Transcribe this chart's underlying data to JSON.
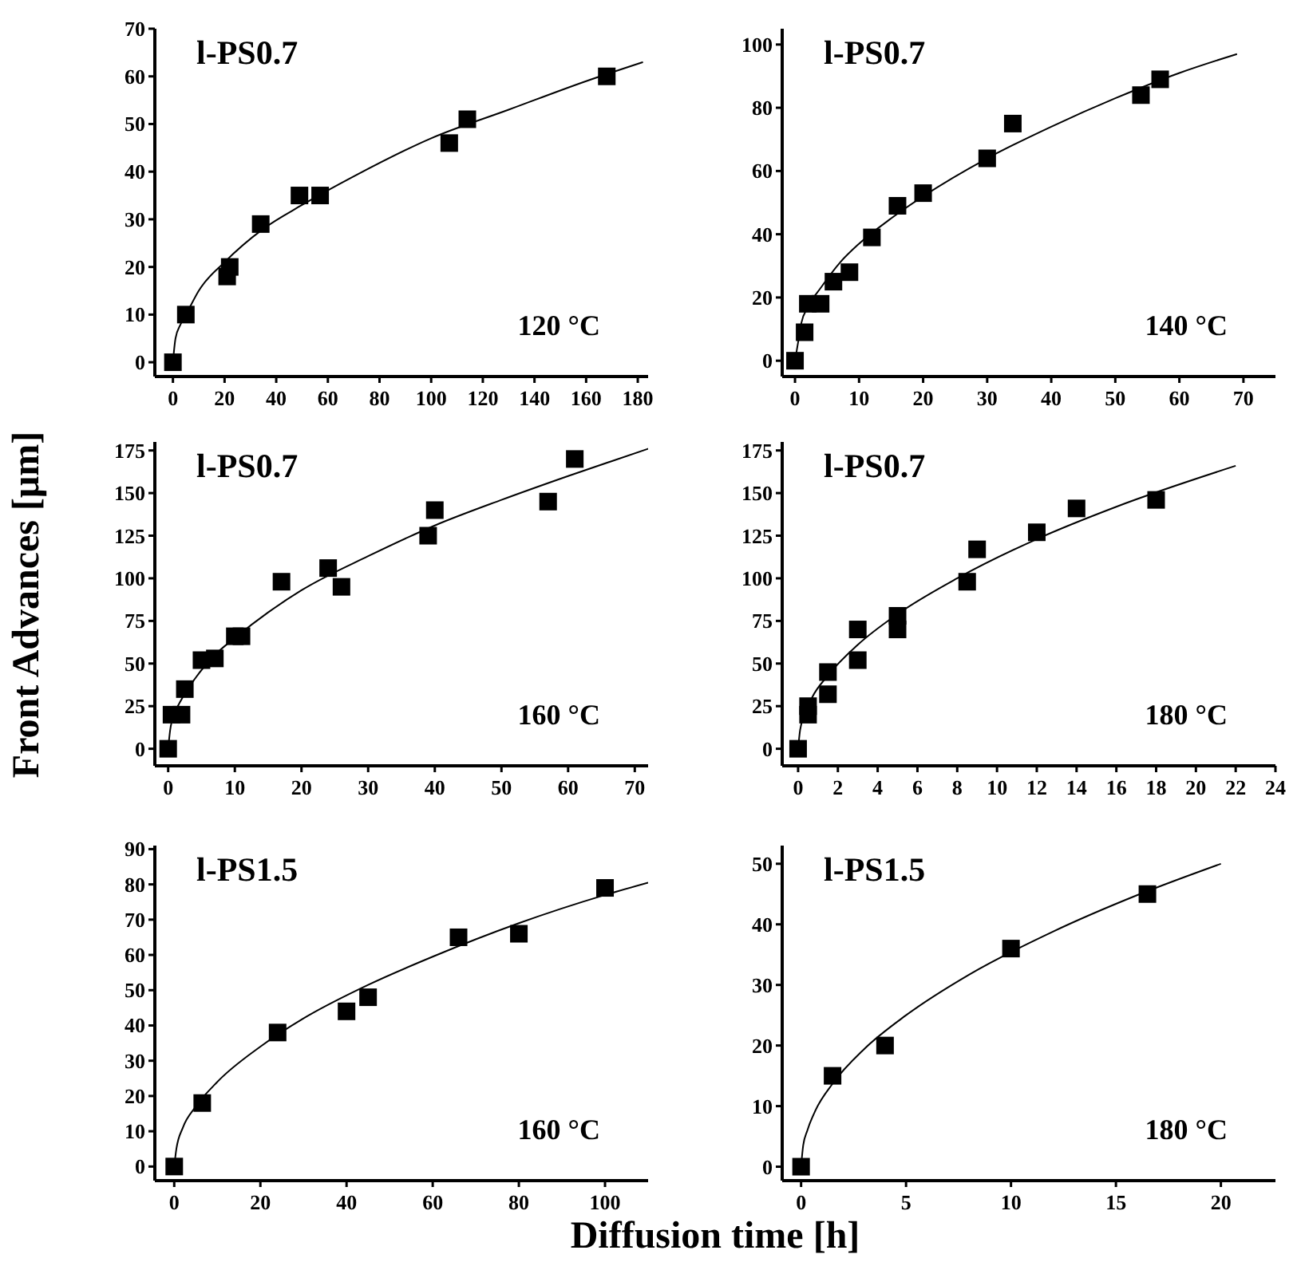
{
  "chart_data": [
    {
      "type": "scatter",
      "annotations": [
        "l-PS0.7",
        "120 °C"
      ],
      "xlim": [
        -7,
        184
      ],
      "xticks": [
        0,
        20,
        40,
        60,
        80,
        100,
        120,
        140,
        160,
        180
      ],
      "ylim": [
        -3,
        70
      ],
      "yticks": [
        0,
        10,
        20,
        30,
        40,
        50,
        60,
        70
      ],
      "series": [
        {
          "type": "scatter",
          "marker": "square",
          "color": "#000000",
          "x": [
            0,
            5,
            21,
            22,
            34,
            49,
            57,
            107,
            114,
            168
          ],
          "values": [
            0,
            10,
            18,
            20,
            29,
            35,
            35,
            46,
            51,
            60
          ]
        },
        {
          "type": "line",
          "color": "#000000",
          "x": [
            0,
            1,
            3,
            6,
            10,
            20,
            35,
            50,
            70,
            100,
            130,
            160,
            182
          ],
          "values": [
            0,
            5,
            8,
            11,
            15,
            21,
            28,
            33,
            39,
            47,
            53,
            59,
            63
          ]
        }
      ]
    },
    {
      "type": "scatter",
      "annotations": [
        "l-PS0.7",
        "140 °C"
      ],
      "xlim": [
        -2,
        75
      ],
      "xticks": [
        0,
        10,
        20,
        30,
        40,
        50,
        60,
        70
      ],
      "ylim": [
        -5,
        105
      ],
      "yticks": [
        0,
        20,
        40,
        60,
        80,
        100
      ],
      "series": [
        {
          "type": "scatter",
          "marker": "square",
          "color": "#000000",
          "x": [
            0,
            1.5,
            2,
            4,
            6,
            8.5,
            12,
            16,
            20,
            30,
            34,
            54,
            57
          ],
          "values": [
            0,
            9,
            18,
            18,
            25,
            28,
            39,
            49,
            53,
            64,
            75,
            84,
            89
          ]
        },
        {
          "type": "line",
          "color": "#000000",
          "x": [
            0,
            0.5,
            1,
            2,
            4,
            7,
            10,
            15,
            20,
            30,
            40,
            50,
            60,
            69
          ],
          "values": [
            0,
            6,
            12,
            17,
            23,
            31,
            37,
            45,
            52,
            64,
            74,
            83,
            91,
            97
          ]
        }
      ]
    },
    {
      "type": "scatter",
      "ylabel": "Front Advances [μm]",
      "annotations": [
        "l-PS0.7",
        "160 °C"
      ],
      "xlim": [
        -2,
        72
      ],
      "xticks": [
        0,
        10,
        20,
        30,
        40,
        50,
        60,
        70
      ],
      "ylim": [
        -10,
        180
      ],
      "yticks": [
        0,
        25,
        50,
        75,
        100,
        125,
        150,
        175
      ],
      "series": [
        {
          "type": "scatter",
          "marker": "square",
          "color": "#000000",
          "x": [
            0,
            0.5,
            2,
            2.5,
            5,
            7,
            10,
            11,
            17,
            24,
            26,
            39,
            40,
            57,
            61
          ],
          "values": [
            0,
            20,
            20,
            35,
            52,
            53,
            66,
            66,
            98,
            106,
            95,
            125,
            140,
            145,
            170
          ]
        },
        {
          "type": "line",
          "color": "#000000",
          "x": [
            0,
            0.3,
            1,
            2,
            4,
            7,
            10,
            15,
            20,
            30,
            40,
            50,
            60,
            72
          ],
          "values": [
            0,
            11,
            21,
            29,
            41,
            55,
            65,
            80,
            93,
            113,
            131,
            146,
            160,
            176
          ]
        }
      ]
    },
    {
      "type": "scatter",
      "annotations": [
        "l-PS0.7",
        "180 °C"
      ],
      "xlim": [
        -0.8,
        24
      ],
      "xticks": [
        0,
        2,
        4,
        6,
        8,
        10,
        12,
        14,
        16,
        18,
        20,
        22,
        24
      ],
      "ylim": [
        -10,
        180
      ],
      "yticks": [
        0,
        25,
        50,
        75,
        100,
        125,
        150,
        175
      ],
      "series": [
        {
          "type": "scatter",
          "marker": "square",
          "color": "#000000",
          "x": [
            0,
            0.5,
            0.5,
            1.5,
            1.5,
            3,
            3,
            5,
            5,
            8.5,
            9,
            12,
            14,
            18
          ],
          "values": [
            0,
            20,
            25,
            32,
            45,
            52,
            70,
            70,
            78,
            98,
            117,
            127,
            141,
            146
          ]
        },
        {
          "type": "line",
          "color": "#000000",
          "x": [
            0,
            0.1,
            0.3,
            0.7,
            1.5,
            3,
            5,
            8,
            12,
            16,
            22
          ],
          "values": [
            0,
            11,
            19,
            30,
            43,
            61,
            79,
            100,
            123,
            142,
            166
          ]
        }
      ]
    },
    {
      "type": "scatter",
      "xlabel": "Diffusion time [h]",
      "annotations": [
        "l-PS1.5",
        "160 °C"
      ],
      "xlim": [
        -4.5,
        110
      ],
      "xticks": [
        0,
        20,
        40,
        60,
        80,
        100
      ],
      "ylim": [
        -4,
        91
      ],
      "yticks": [
        0,
        10,
        20,
        30,
        40,
        50,
        60,
        70,
        80,
        90
      ],
      "series": [
        {
          "type": "scatter",
          "marker": "square",
          "color": "#000000",
          "x": [
            0,
            6.5,
            24,
            40,
            45,
            66,
            80,
            100
          ],
          "values": [
            0,
            18,
            38,
            44,
            48,
            65,
            66,
            79
          ]
        },
        {
          "type": "line",
          "color": "#000000",
          "x": [
            0,
            0.5,
            2,
            5,
            10,
            20,
            30,
            45,
            60,
            80,
            100,
            110
          ],
          "values": [
            0,
            5,
            11,
            17,
            24,
            34,
            42,
            51.5,
            59.5,
            69,
            77,
            80.5
          ]
        }
      ]
    },
    {
      "type": "scatter",
      "annotations": [
        "l-PS1.5",
        "180 °C"
      ],
      "xlim": [
        -0.9,
        22.6
      ],
      "xticks": [
        0,
        5,
        10,
        15,
        20
      ],
      "ylim": [
        -2.3,
        53
      ],
      "yticks": [
        0,
        10,
        20,
        30,
        40,
        50
      ],
      "series": [
        {
          "type": "scatter",
          "marker": "square",
          "color": "#000000",
          "x": [
            0,
            1.5,
            4,
            10,
            16.5
          ],
          "values": [
            0,
            15,
            20,
            36,
            45
          ]
        },
        {
          "type": "line",
          "color": "#000000",
          "x": [
            0,
            0.1,
            0.3,
            0.7,
            1.5,
            3,
            5,
            8,
            12,
            16,
            20
          ],
          "values": [
            0,
            3.5,
            6,
            9.4,
            13.7,
            19.4,
            25,
            31.7,
            38.8,
            44.8,
            50
          ]
        }
      ]
    }
  ]
}
